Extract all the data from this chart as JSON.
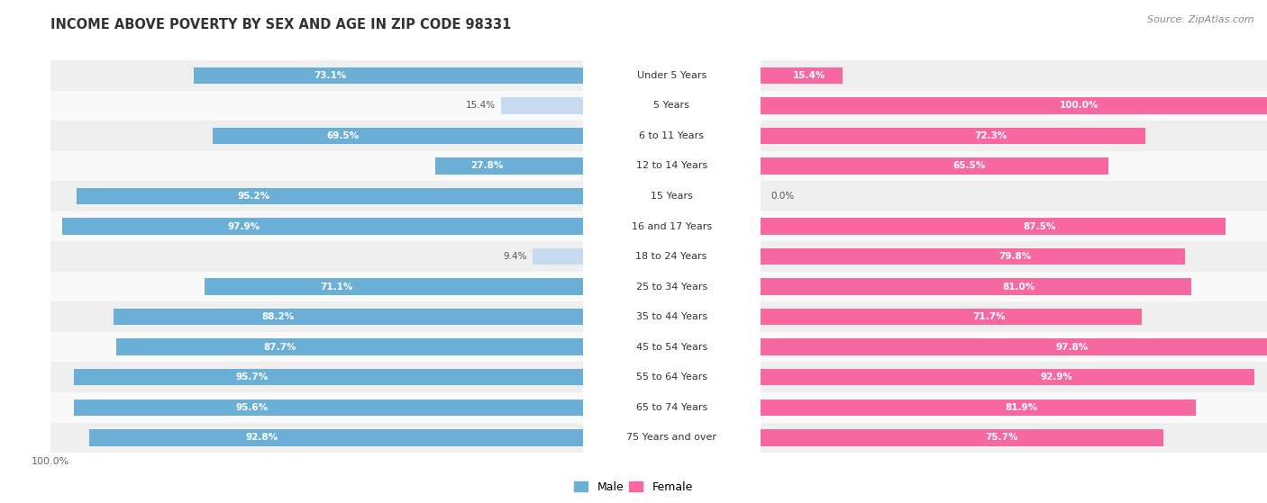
{
  "title": "INCOME ABOVE POVERTY BY SEX AND AGE IN ZIP CODE 98331",
  "source": "Source: ZipAtlas.com",
  "categories": [
    "Under 5 Years",
    "5 Years",
    "6 to 11 Years",
    "12 to 14 Years",
    "15 Years",
    "16 and 17 Years",
    "18 to 24 Years",
    "25 to 34 Years",
    "35 to 44 Years",
    "45 to 54 Years",
    "55 to 64 Years",
    "65 to 74 Years",
    "75 Years and over"
  ],
  "male": [
    73.1,
    15.4,
    69.5,
    27.8,
    95.2,
    97.9,
    9.4,
    71.1,
    88.2,
    87.7,
    95.7,
    95.6,
    92.8
  ],
  "female": [
    15.4,
    100.0,
    72.3,
    65.5,
    0.0,
    87.5,
    79.8,
    81.0,
    71.7,
    97.8,
    92.9,
    81.9,
    75.7
  ],
  "male_color": "#6baed6",
  "female_color": "#f768a1",
  "male_light_color": "#c6dbef",
  "female_light_color": "#fcc5d8",
  "male_label": "Male",
  "female_label": "Female",
  "row_bg_even": "#efefef",
  "row_bg_odd": "#f9f9f9",
  "title_fontsize": 10.5,
  "source_fontsize": 8,
  "cat_fontsize": 8,
  "bar_label_fontsize": 7.5,
  "figsize": [
    14.06,
    5.59
  ],
  "dpi": 100
}
